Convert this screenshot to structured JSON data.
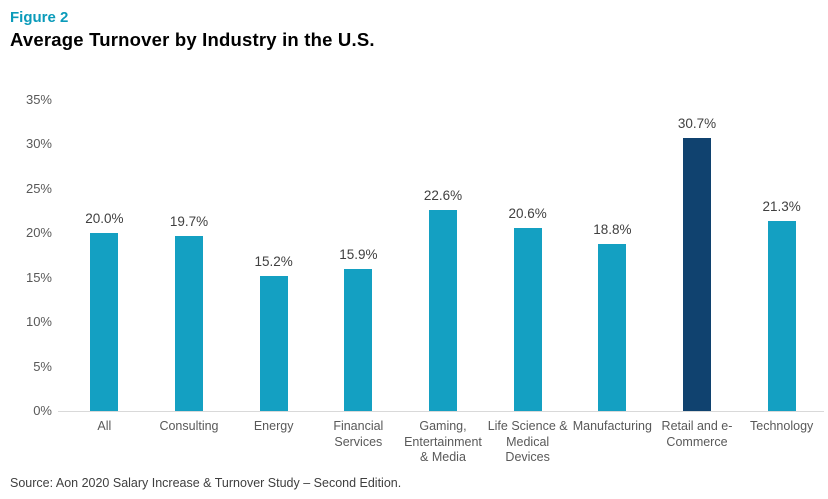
{
  "header": {
    "figure_label": "Figure 2",
    "title": "Average Turnover by Industry in the U.S."
  },
  "footer": {
    "source": "Source: Aon 2020 Salary Increase & Turnover Study – Second Edition."
  },
  "colors": {
    "bar": "#14a0c2",
    "bar_highlight": "#10426f",
    "figure_label": "#0b9bba",
    "title_text": "#000000",
    "axis_text": "#595959",
    "value_text": "#404040",
    "baseline": "#d9d9d9"
  },
  "chart_data": {
    "type": "bar",
    "title": "Average Turnover by Industry in the U.S.",
    "categories": [
      "All",
      "Consulting",
      "Energy",
      "Financial Services",
      "Gaming, Entertainment & Media",
      "Life Science & Medical Devices",
      "Manufacturing",
      "Retail and e-Commerce",
      "Technology"
    ],
    "category_label_lines": [
      [
        "All"
      ],
      [
        "Consulting"
      ],
      [
        "Energy"
      ],
      [
        "Financial",
        "Services"
      ],
      [
        "Gaming,",
        "Entertainment",
        "& Media"
      ],
      [
        "Life Science &",
        "Medical",
        "Devices"
      ],
      [
        "Manufacturing"
      ],
      [
        "Retail and e-",
        "Commerce"
      ],
      [
        "Technology"
      ]
    ],
    "values": [
      20.0,
      19.7,
      15.2,
      15.9,
      22.6,
      20.6,
      18.8,
      30.7,
      21.3
    ],
    "value_labels": [
      "20.0%",
      "19.7%",
      "15.2%",
      "15.9%",
      "22.6%",
      "20.6%",
      "18.8%",
      "30.7%",
      "21.3%"
    ],
    "unit": "%",
    "highlight_index": 7,
    "xlabel": "",
    "ylabel": "",
    "ylim": [
      0,
      35
    ],
    "ytick_interval": 5,
    "ytick_labels": [
      "0%",
      "5%",
      "10%",
      "15%",
      "20%",
      "25%",
      "30%",
      "35%"
    ],
    "grid": false,
    "legend": false
  }
}
